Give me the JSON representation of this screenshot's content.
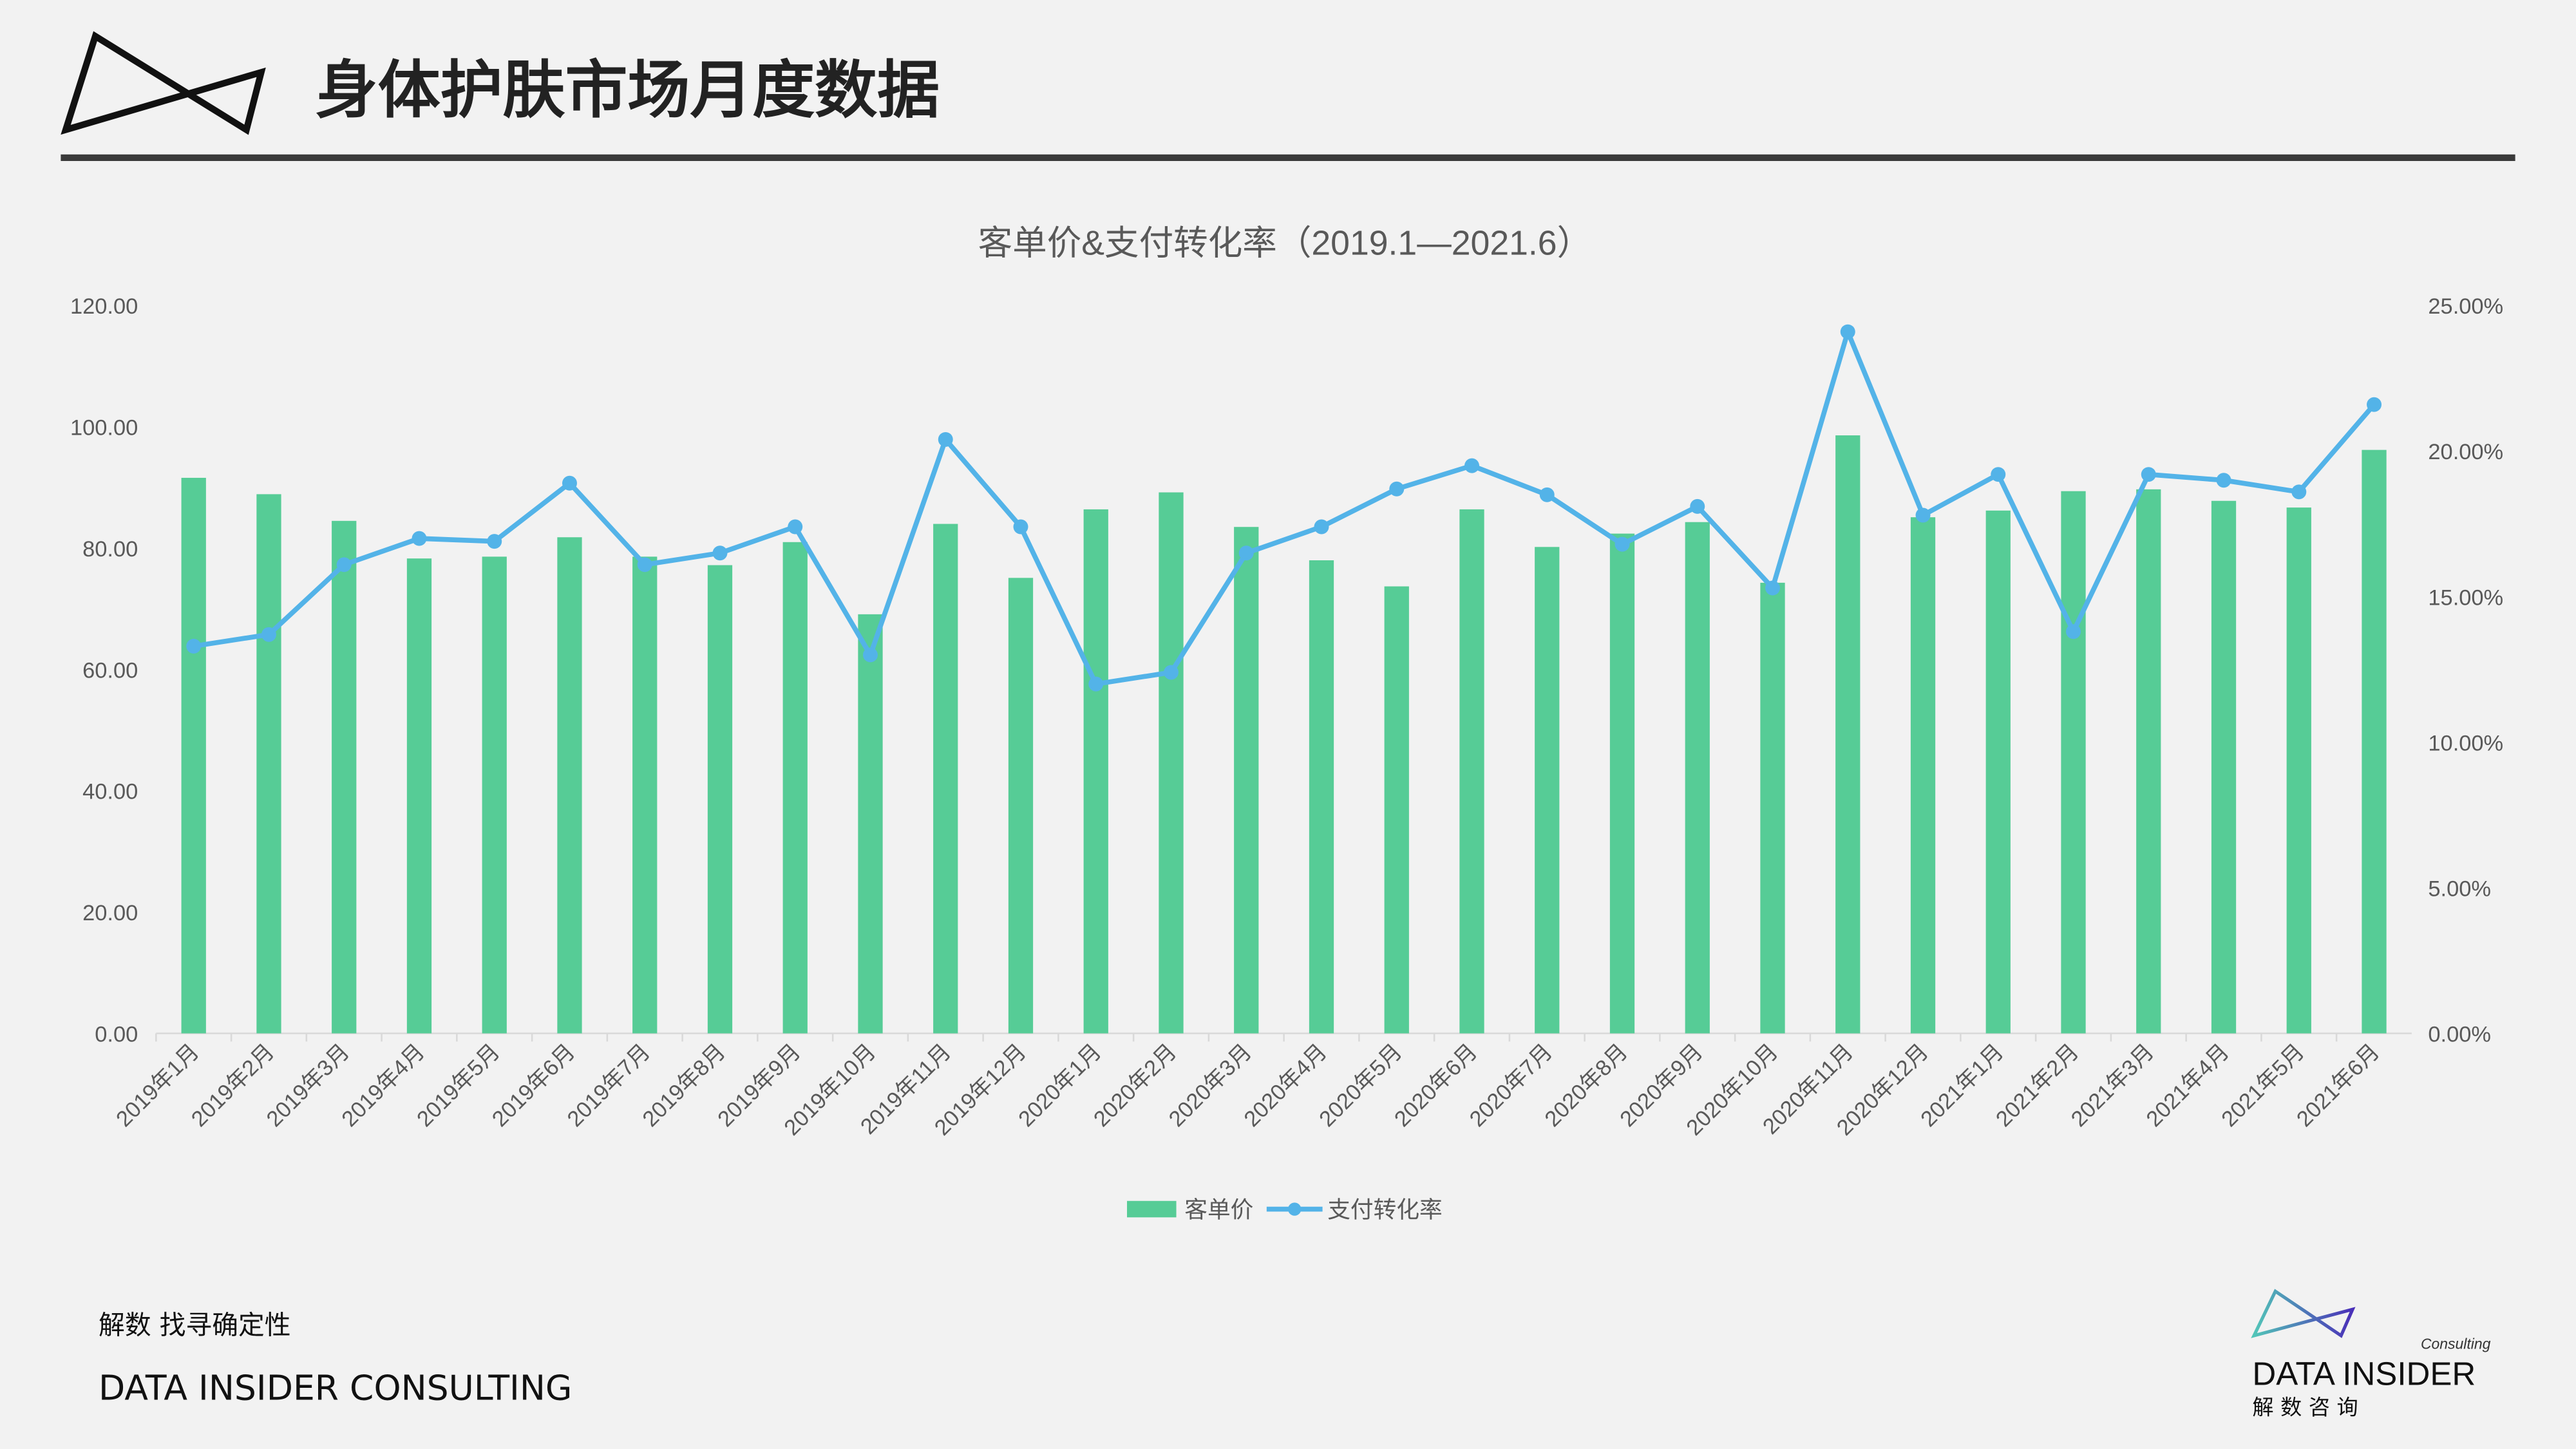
{
  "header": {
    "title": "身体护肤市场月度数据"
  },
  "footer": {
    "slogan": "解数 找寻确定性",
    "company": "DATA INSIDER CONSULTING"
  },
  "brand_logo": {
    "consulting": "Consulting",
    "name": "DATA INSIDER",
    "cn": "解 数 咨 询"
  },
  "colors": {
    "bar": "#56cc96",
    "line": "#53b3e8",
    "accent_line": "#333333"
  },
  "chart_data": {
    "type": "bar+line",
    "title": "客单价&支付转化率（2019.1—2021.6）",
    "categories": [
      "2019年1月",
      "2019年2月",
      "2019年3月",
      "2019年4月",
      "2019年5月",
      "2019年6月",
      "2019年7月",
      "2019年8月",
      "2019年9月",
      "2019年10月",
      "2019年11月",
      "2019年12月",
      "2020年1月",
      "2020年2月",
      "2020年3月",
      "2020年4月",
      "2020年5月",
      "2020年6月",
      "2020年7月",
      "2020年8月",
      "2020年9月",
      "2020年10月",
      "2020年11月",
      "2020年12月",
      "2021年1月",
      "2021年2月",
      "2021年3月",
      "2021年4月",
      "2021年5月",
      "2021年6月"
    ],
    "series": [
      {
        "name": "客单价",
        "type": "bar",
        "axis": "left",
        "values": [
          91.6,
          88.9,
          84.5,
          78.3,
          78.6,
          81.8,
          78.6,
          77.2,
          81.0,
          69.1,
          84.0,
          75.1,
          86.4,
          89.2,
          83.5,
          78.0,
          73.7,
          86.4,
          80.2,
          82.4,
          84.3,
          74.3,
          98.6,
          85.1,
          86.2,
          89.4,
          89.7,
          87.8,
          86.7,
          96.2
        ]
      },
      {
        "name": "支付转化率",
        "type": "line",
        "axis": "right",
        "unit": "%",
        "values": [
          13.3,
          13.7,
          16.1,
          17.0,
          16.9,
          18.9,
          16.1,
          16.5,
          17.4,
          13.0,
          20.4,
          17.4,
          12.0,
          12.4,
          16.5,
          17.4,
          18.7,
          19.5,
          18.5,
          16.8,
          18.1,
          15.3,
          24.1,
          17.8,
          19.2,
          13.8,
          19.2,
          19.0,
          18.6,
          21.6
        ]
      }
    ],
    "yleft": {
      "ylim": [
        0,
        120
      ],
      "ticks": [
        "0.00",
        "20.00",
        "40.00",
        "60.00",
        "80.00",
        "100.00",
        "120.00"
      ]
    },
    "yright": {
      "ylim": [
        0,
        25
      ],
      "ticks": [
        "0.00%",
        "5.00%",
        "10.00%",
        "15.00%",
        "20.00%",
        "25.00%"
      ]
    },
    "grid": false,
    "legend": "bottom-center"
  }
}
